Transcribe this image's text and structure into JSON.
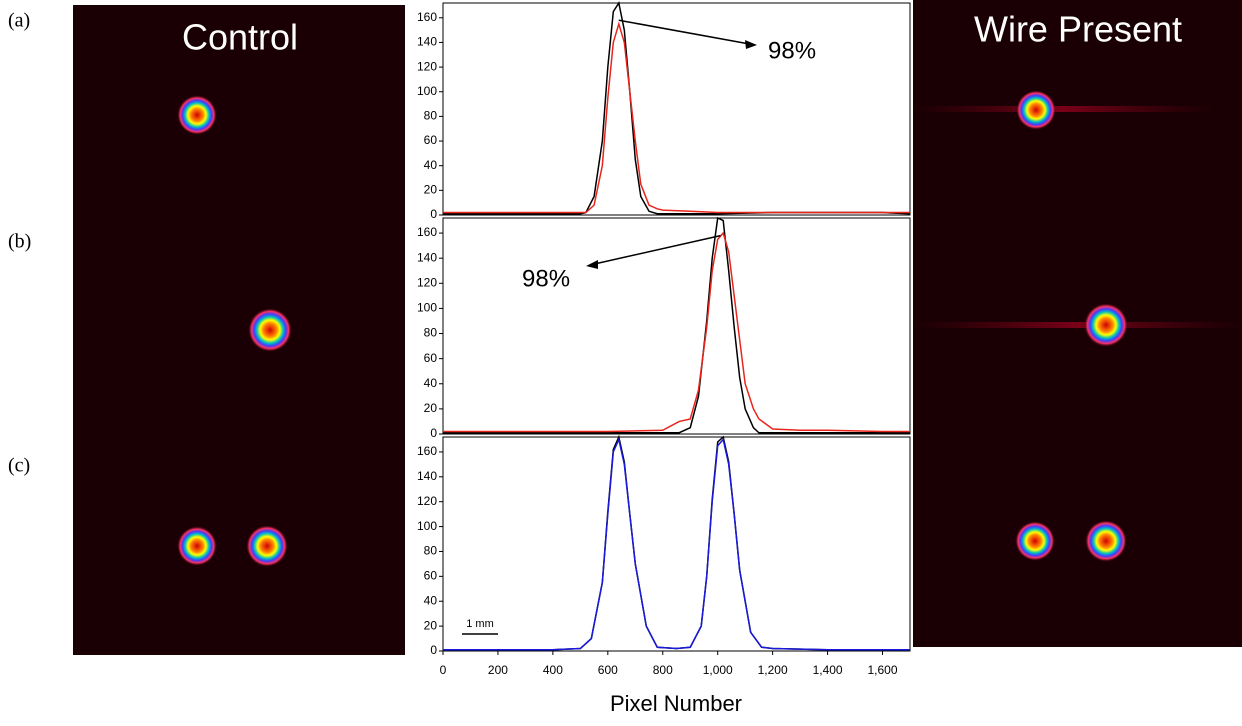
{
  "panel_labels": [
    "(a)",
    "(b)",
    "(c)"
  ],
  "left_title": "Control",
  "right_title": "Wire Present",
  "chart_data": [
    {
      "type": "line",
      "annotation": "98%",
      "x": [
        0,
        200,
        400,
        500,
        520,
        550,
        580,
        600,
        620,
        640,
        660,
        680,
        700,
        720,
        750,
        780,
        800,
        900,
        1000,
        1200,
        1400,
        1600,
        1700
      ],
      "series": [
        {
          "color": "#000000",
          "values": [
            1,
            1,
            1,
            1,
            2,
            15,
            60,
            120,
            165,
            172,
            150,
            100,
            45,
            15,
            3,
            1,
            1,
            1,
            1,
            2,
            2,
            2,
            1
          ]
        },
        {
          "color": "#e8251c",
          "values": [
            2,
            2,
            2,
            2,
            2,
            8,
            40,
            95,
            140,
            155,
            140,
            100,
            60,
            25,
            8,
            5,
            4,
            3,
            2,
            2,
            2,
            2,
            2
          ]
        }
      ],
      "xlim": [
        0,
        1700
      ],
      "ylim": [
        0,
        172
      ],
      "yticks": [
        0,
        20,
        40,
        60,
        80,
        100,
        120,
        140,
        160
      ]
    },
    {
      "type": "line",
      "annotation": "98%",
      "x": [
        0,
        200,
        400,
        600,
        800,
        860,
        900,
        930,
        960,
        980,
        1000,
        1020,
        1040,
        1060,
        1080,
        1100,
        1130,
        1150,
        1200,
        1300,
        1400,
        1600,
        1700
      ],
      "series": [
        {
          "color": "#000000",
          "values": [
            1,
            1,
            1,
            1,
            1,
            1,
            5,
            30,
            90,
            140,
            172,
            170,
            130,
            85,
            45,
            20,
            5,
            1,
            1,
            1,
            1,
            1,
            1
          ]
        },
        {
          "color": "#e8251c",
          "values": [
            2,
            2,
            2,
            2,
            3,
            10,
            12,
            35,
            85,
            130,
            155,
            160,
            145,
            110,
            75,
            40,
            20,
            12,
            4,
            3,
            3,
            2,
            2
          ]
        }
      ],
      "xlim": [
        0,
        1700
      ],
      "ylim": [
        0,
        172
      ],
      "yticks": [
        0,
        20,
        40,
        60,
        80,
        100,
        120,
        140,
        160
      ]
    },
    {
      "type": "line",
      "scale_label": "1 mm",
      "xlabel": "Pixel Number",
      "x": [
        0,
        400,
        500,
        540,
        580,
        600,
        620,
        640,
        660,
        680,
        700,
        740,
        780,
        850,
        900,
        940,
        960,
        980,
        1000,
        1020,
        1040,
        1060,
        1080,
        1120,
        1160,
        1200,
        1400,
        1700
      ],
      "series": [
        {
          "color": "#000000",
          "values": [
            1,
            1,
            2,
            10,
            55,
            112,
            162,
            172,
            152,
            110,
            70,
            20,
            3,
            2,
            3,
            20,
            60,
            122,
            168,
            172,
            152,
            110,
            65,
            15,
            3,
            2,
            1,
            1
          ]
        },
        {
          "color": "#1a1adc",
          "values": [
            1,
            1,
            2,
            10,
            55,
            110,
            160,
            170,
            150,
            110,
            70,
            20,
            3,
            2,
            3,
            20,
            60,
            120,
            165,
            170,
            150,
            110,
            65,
            15,
            3,
            2,
            1,
            1
          ]
        }
      ],
      "xlim": [
        0,
        1700
      ],
      "ylim": [
        0,
        172
      ],
      "yticks": [
        0,
        20,
        40,
        60,
        80,
        100,
        120,
        140,
        160
      ],
      "xticks": [
        0,
        200,
        400,
        600,
        800,
        {
          "value": 1000,
          "label": "1,000"
        },
        {
          "value": 1200,
          "label": "1,200"
        },
        {
          "value": 1400,
          "label": "1,400"
        },
        {
          "value": 1600,
          "label": "1,600"
        }
      ]
    }
  ]
}
